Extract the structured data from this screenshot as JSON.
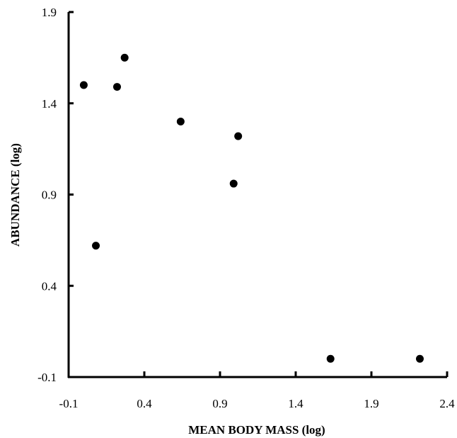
{
  "chart_data": {
    "type": "scatter",
    "title": "",
    "xlabel": "MEAN BODY MASS (log)",
    "ylabel": "ABUNDANCE (log)",
    "xlim": [
      -0.1,
      2.4
    ],
    "ylim": [
      -0.1,
      1.9
    ],
    "xticks": [
      "-0.1",
      "0.4",
      "0.9",
      "1.4",
      "1.9",
      "2.4"
    ],
    "yticks": [
      "-0.1",
      "0.4",
      "0.9",
      "1.4",
      "1.9"
    ],
    "grid": false,
    "legend": "none",
    "marker_color": "#000000",
    "points": [
      {
        "x": 0.0,
        "y": 1.5
      },
      {
        "x": 0.08,
        "y": 0.62
      },
      {
        "x": 0.22,
        "y": 1.49
      },
      {
        "x": 0.27,
        "y": 1.65
      },
      {
        "x": 0.64,
        "y": 1.3
      },
      {
        "x": 0.99,
        "y": 0.96
      },
      {
        "x": 1.02,
        "y": 1.22
      },
      {
        "x": 1.63,
        "y": 0.0
      },
      {
        "x": 2.22,
        "y": 0.0
      }
    ]
  }
}
